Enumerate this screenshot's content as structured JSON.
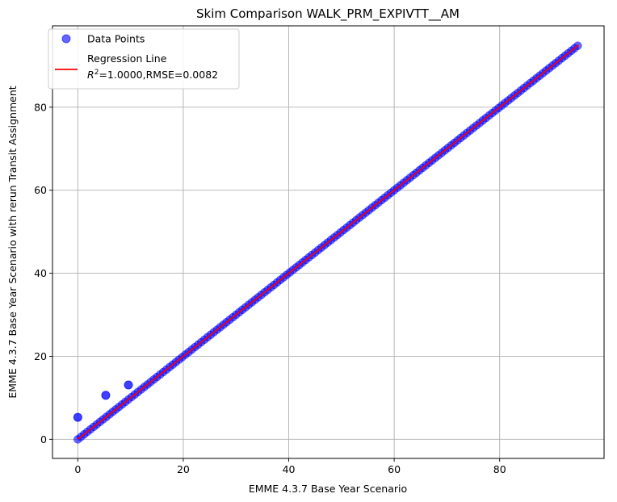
{
  "chart_data": {
    "type": "scatter",
    "title": "Skim Comparison WALK_PRM_EXPIVTT__AM",
    "xlabel": "EMME 4.3.7 Base Year Scenario",
    "ylabel": "EMME 4.3.7 Base Year Scenario with rerun Transit Assignment",
    "xlim": [
      -4.8,
      99.8
    ],
    "ylim": [
      -4.6,
      99.6
    ],
    "xticks": [
      0,
      20,
      40,
      60,
      80
    ],
    "yticks": [
      0,
      20,
      40,
      60,
      80
    ],
    "grid": true,
    "legend_position": "top-left",
    "legend": {
      "points_label": "Data Points",
      "line_label": "Regression Line",
      "line_stats_prefix": "=1.0000,RMSE=0.0082"
    },
    "series": [
      {
        "name": "Data Points",
        "kind": "scatter",
        "color": "#0000ff",
        "continuous_range": [
          0,
          95
        ],
        "outliers": [
          {
            "x": 0,
            "y": 5.3
          },
          {
            "x": 5.3,
            "y": 10.6
          },
          {
            "x": 9.6,
            "y": 13.1
          }
        ]
      },
      {
        "name": "Regression Line",
        "kind": "line",
        "color": "#ff0000",
        "slope": 1.0,
        "intercept": 0.0,
        "x_range": [
          0,
          95
        ]
      }
    ],
    "grid_color": "#b0b0b0"
  }
}
